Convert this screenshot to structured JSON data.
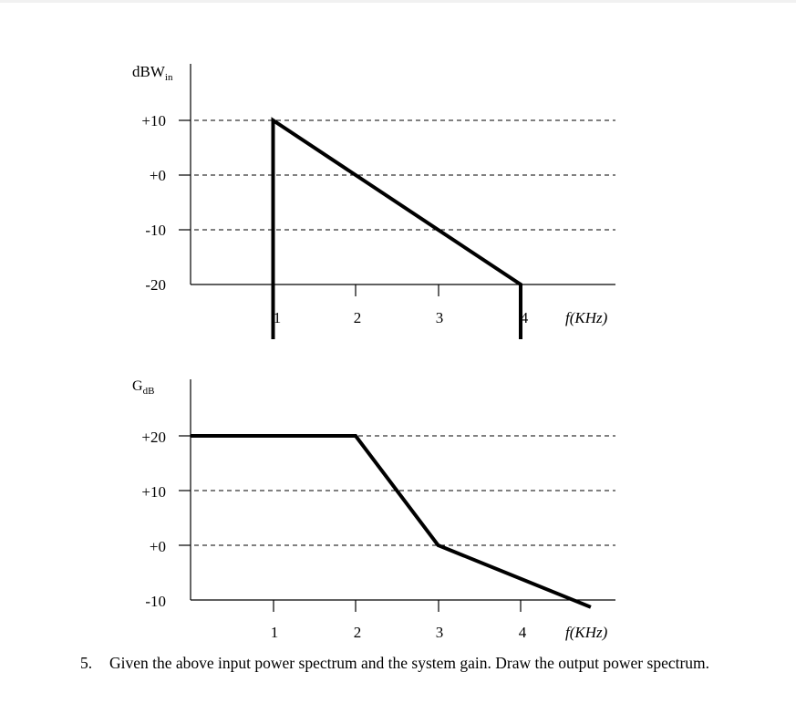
{
  "chart_data": [
    {
      "type": "line",
      "ylabel": "dBW",
      "ylabel_sub": "in",
      "xlabel": "f(KHz)",
      "y_ticks": [
        "+10",
        "+0",
        "-10",
        "-20"
      ],
      "y_tick_values": [
        10,
        0,
        -10,
        -20
      ],
      "x_ticks": [
        "1",
        "2",
        "3",
        "4"
      ],
      "x_tick_values": [
        1,
        2,
        3,
        4
      ],
      "xlim": [
        0,
        4.25
      ],
      "ylim": [
        -20,
        10
      ],
      "grid": "dashed horizontal",
      "series": [
        {
          "x": [
            1,
            1,
            4,
            4
          ],
          "y": [
            -30,
            10,
            -20,
            -30
          ]
        }
      ]
    },
    {
      "type": "line",
      "ylabel": "G",
      "ylabel_sub": "dB",
      "xlabel": "f(KHz)",
      "y_ticks": [
        "+20",
        "+10",
        "+0",
        "-10"
      ],
      "y_tick_values": [
        20,
        10,
        0,
        -10
      ],
      "x_ticks": [
        "1",
        "2",
        "3",
        "4"
      ],
      "x_tick_values": [
        1,
        2,
        3,
        4
      ],
      "xlim": [
        0,
        4.25
      ],
      "ylim": [
        -10,
        20
      ],
      "grid": "dashed horizontal",
      "series": [
        {
          "x": [
            0,
            2,
            3,
            4.85
          ],
          "y": [
            20,
            20,
            0,
            -11.3
          ]
        }
      ]
    }
  ],
  "question": {
    "number": "5.",
    "text": "Given the above input power spectrum and the system gain.  Draw the output power spectrum."
  }
}
